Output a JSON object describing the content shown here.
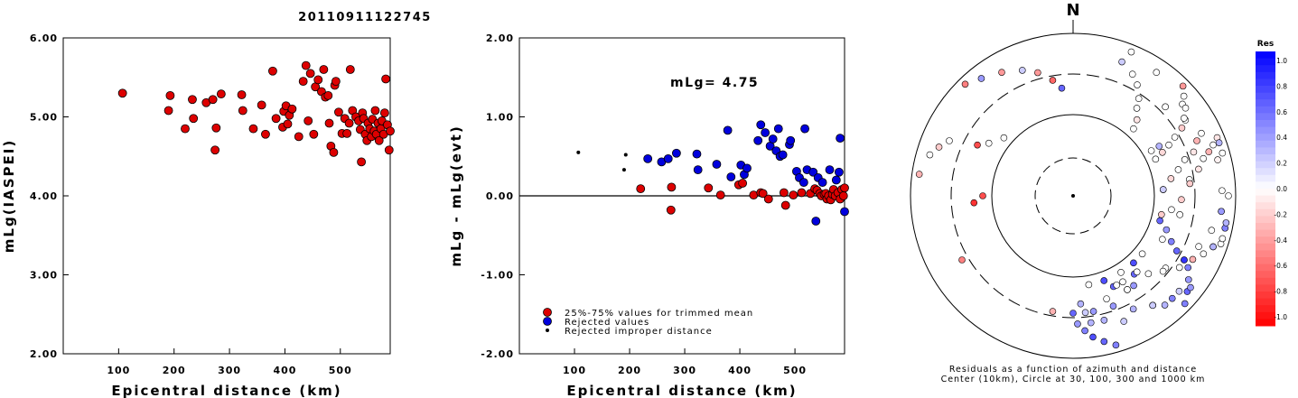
{
  "title": "20110911122745",
  "chart_data": [
    {
      "type": "scatter",
      "name": "magnitude-vs-distance",
      "xlabel": "Epicentral distance (km)",
      "ylabel": "mLg(IASPEI)",
      "xlim": [
        0,
        590
      ],
      "ylim": [
        2.0,
        6.0
      ],
      "xticks": [
        100,
        200,
        300,
        400,
        500
      ],
      "yticks": [
        "2.00",
        "3.00",
        "4.00",
        "5.00",
        "6.00"
      ],
      "marker_color": "#dd0000",
      "points": [
        [
          107,
          5.3
        ],
        [
          190,
          5.08
        ],
        [
          193,
          5.27
        ],
        [
          220,
          4.85
        ],
        [
          233,
          5.22
        ],
        [
          235,
          4.98
        ],
        [
          258,
          5.18
        ],
        [
          270,
          5.22
        ],
        [
          274,
          4.58
        ],
        [
          276,
          4.86
        ],
        [
          285,
          5.29
        ],
        [
          322,
          5.28
        ],
        [
          324,
          5.08
        ],
        [
          343,
          4.85
        ],
        [
          358,
          5.15
        ],
        [
          365,
          4.78
        ],
        [
          378,
          5.58
        ],
        [
          384,
          4.98
        ],
        [
          396,
          4.87
        ],
        [
          398,
          5.07
        ],
        [
          402,
          5.14
        ],
        [
          405,
          4.91
        ],
        [
          408,
          5.02
        ],
        [
          413,
          5.1
        ],
        [
          425,
          4.75
        ],
        [
          433,
          5.45
        ],
        [
          438,
          5.65
        ],
        [
          442,
          4.95
        ],
        [
          446,
          5.55
        ],
        [
          452,
          4.78
        ],
        [
          455,
          5.38
        ],
        [
          460,
          5.47
        ],
        [
          466,
          5.32
        ],
        [
          470,
          5.6
        ],
        [
          473,
          5.25
        ],
        [
          478,
          5.27
        ],
        [
          480,
          4.92
        ],
        [
          483,
          4.63
        ],
        [
          488,
          4.55
        ],
        [
          490,
          5.4
        ],
        [
          492,
          5.45
        ],
        [
          497,
          5.06
        ],
        [
          503,
          4.79
        ],
        [
          508,
          4.98
        ],
        [
          512,
          4.79
        ],
        [
          516,
          4.92
        ],
        [
          518,
          5.6
        ],
        [
          522,
          5.08
        ],
        [
          528,
          5.0
        ],
        [
          533,
          4.95
        ],
        [
          536,
          4.84
        ],
        [
          538,
          4.43
        ],
        [
          540,
          5.05
        ],
        [
          542,
          4.98
        ],
        [
          545,
          4.78
        ],
        [
          548,
          4.7
        ],
        [
          550,
          4.92
        ],
        [
          553,
          4.85
        ],
        [
          556,
          4.75
        ],
        [
          558,
          4.97
        ],
        [
          561,
          4.82
        ],
        [
          563,
          5.08
        ],
        [
          565,
          4.78
        ],
        [
          568,
          4.92
        ],
        [
          570,
          4.7
        ],
        [
          573,
          4.85
        ],
        [
          575,
          4.95
        ],
        [
          578,
          4.78
        ],
        [
          580,
          5.05
        ],
        [
          582,
          5.48
        ],
        [
          585,
          4.9
        ],
        [
          588,
          4.58
        ],
        [
          590,
          4.82
        ]
      ]
    },
    {
      "type": "scatter",
      "name": "residual-vs-distance",
      "xlabel": "Epicentral distance (km)",
      "ylabel": "mLg - mLg(evt)",
      "xlim": [
        0,
        590
      ],
      "ylim": [
        -2.0,
        2.0
      ],
      "xticks": [
        100,
        200,
        300,
        400,
        500
      ],
      "yticks": [
        "-2.00",
        "-1.00",
        "0.00",
        "1.00",
        "2.00"
      ],
      "annotation": "mLg= 4.75",
      "series": [
        {
          "name": "25%-75% values for trimmed mean",
          "color": "#dd0000",
          "points": [
            [
              220,
              0.09
            ],
            [
              275,
              -0.18
            ],
            [
              276,
              0.11
            ],
            [
              343,
              0.1
            ],
            [
              365,
              0.01
            ],
            [
              398,
              0.14
            ],
            [
              405,
              0.16
            ],
            [
              425,
              0.01
            ],
            [
              438,
              0.04
            ],
            [
              442,
              0.03
            ],
            [
              452,
              -0.04
            ],
            [
              480,
              0.04
            ],
            [
              483,
              -0.12
            ],
            [
              497,
              0.01
            ],
            [
              512,
              0.04
            ],
            [
              528,
              0.03
            ],
            [
              536,
              0.09
            ],
            [
              540,
              0.07
            ],
            [
              545,
              0.03
            ],
            [
              548,
              0.0
            ],
            [
              553,
              0.02
            ],
            [
              556,
              0.03
            ],
            [
              558,
              -0.04
            ],
            [
              561,
              0.0
            ],
            [
              565,
              -0.05
            ],
            [
              568,
              0.02
            ],
            [
              570,
              0.08
            ],
            [
              573,
              0.0
            ],
            [
              578,
              0.04
            ],
            [
              582,
              -0.04
            ],
            [
              585,
              0.08
            ],
            [
              588,
              0.0
            ],
            [
              590,
              0.1
            ]
          ]
        },
        {
          "name": "Rejected values",
          "color": "#0000dd",
          "points": [
            [
              233,
              0.47
            ],
            [
              258,
              0.43
            ],
            [
              270,
              0.47
            ],
            [
              285,
              0.54
            ],
            [
              322,
              0.53
            ],
            [
              324,
              0.33
            ],
            [
              358,
              0.4
            ],
            [
              378,
              0.83
            ],
            [
              384,
              0.24
            ],
            [
              402,
              0.39
            ],
            [
              408,
              0.27
            ],
            [
              413,
              0.35
            ],
            [
              433,
              0.7
            ],
            [
              438,
              0.9
            ],
            [
              446,
              0.8
            ],
            [
              455,
              0.63
            ],
            [
              460,
              0.72
            ],
            [
              466,
              0.57
            ],
            [
              470,
              0.85
            ],
            [
              473,
              0.5
            ],
            [
              478,
              0.52
            ],
            [
              490,
              0.65
            ],
            [
              492,
              0.7
            ],
            [
              503,
              0.31
            ],
            [
              508,
              0.23
            ],
            [
              516,
              0.17
            ],
            [
              518,
              0.85
            ],
            [
              522,
              0.33
            ],
            [
              533,
              0.3
            ],
            [
              538,
              -0.32
            ],
            [
              542,
              0.23
            ],
            [
              550,
              0.17
            ],
            [
              563,
              0.33
            ],
            [
              575,
              0.2
            ],
            [
              580,
              0.3
            ],
            [
              582,
              0.73
            ],
            [
              590,
              -0.2
            ]
          ]
        },
        {
          "name": "Rejected improper distance",
          "color": "#000000",
          "points": [
            [
              107,
              0.55
            ],
            [
              193,
              0.52
            ],
            [
              190,
              0.33
            ]
          ]
        }
      ]
    },
    {
      "type": "polar",
      "name": "residual-azimuth-map",
      "top_label": "N",
      "caption_line1": "Residuals as a function of azimuth and distance",
      "caption_line2": "Center (10km), Circle at 30, 100, 300 and 1000 km",
      "colorbar_title": "Res",
      "colorbar_ticks": [
        "1.0",
        "0.8",
        "0.6",
        "0.4",
        "0.2",
        "0.0",
        "-0.2",
        "-0.4",
        "-0.6",
        "-0.8",
        "-1.0"
      ],
      "stations": [
        [
          108,
          0.0
        ],
        [
          76,
          -0.05
        ],
        [
          64,
          0.0
        ],
        [
          66,
          -0.3
        ],
        [
          70,
          -0.1
        ],
        [
          72,
          0.0
        ],
        [
          76,
          0.0
        ],
        [
          80,
          -0.15
        ],
        [
          86,
          -0.1
        ],
        [
          90,
          0.0
        ],
        [
          96,
          -0.05
        ],
        [
          104,
          0.0
        ],
        [
          112,
          0.0
        ],
        [
          120,
          -0.3
        ],
        [
          128,
          0.0
        ],
        [
          136,
          0.0
        ],
        [
          150,
          0.0
        ],
        [
          170,
          0.0
        ],
        [
          22,
          0.0
        ],
        [
          34,
          0.0
        ],
        [
          50,
          0.0
        ],
        [
          56,
          0.0
        ],
        [
          46,
          0.0
        ],
        [
          82,
          0.0
        ],
        [
          100,
          0.0
        ],
        [
          116,
          0.0
        ],
        [
          60,
          0.0
        ],
        [
          74,
          0.0
        ],
        [
          88,
          0.0
        ],
        [
          20,
          0.2
        ],
        [
          26,
          0.0
        ],
        [
          30,
          0.0
        ],
        [
          34,
          0.0
        ],
        [
          36,
          0.0
        ],
        [
          40,
          -0.1
        ],
        [
          42,
          0.0
        ],
        [
          45,
          -0.4
        ],
        [
          48,
          0.0
        ],
        [
          52,
          0.0
        ],
        [
          55,
          0.0
        ],
        [
          58,
          -0.2
        ],
        [
          60,
          0.0
        ],
        [
          62,
          0.0
        ],
        [
          64,
          -0.15
        ],
        [
          66,
          0.0
        ],
        [
          68,
          -0.1
        ],
        [
          70,
          0.0
        ],
        [
          72,
          -0.3
        ],
        [
          74,
          0.0
        ],
        [
          78,
          -0.1
        ],
        [
          84,
          -0.2
        ],
        [
          92,
          -0.2
        ],
        [
          98,
          0.0
        ],
        [
          102,
          -0.2
        ],
        [
          106,
          0.0
        ],
        [
          110,
          -0.2
        ],
        [
          114,
          0.0
        ],
        [
          118,
          -0.3
        ],
        [
          124,
          0.0
        ],
        [
          130,
          0.0
        ],
        [
          298,
          -0.7
        ],
        [
          302,
          0.0
        ],
        [
          310,
          0.0
        ],
        [
          316,
          -0.5
        ],
        [
          322,
          0.4
        ],
        [
          330,
          -0.4
        ],
        [
          338,
          0.2
        ],
        [
          344,
          -0.4
        ],
        [
          350,
          -0.6
        ],
        [
          354,
          0.6
        ],
        [
          266,
          -0.8
        ],
        [
          270,
          -0.7
        ],
        [
          278,
          -0.3
        ],
        [
          286,
          0.0
        ],
        [
          290,
          -0.2
        ],
        [
          294,
          0.0
        ],
        [
          240,
          -0.5
        ],
        [
          190,
          -0.3
        ],
        [
          150,
          0.5
        ],
        [
          156,
          0.6
        ],
        [
          160,
          0.7
        ],
        [
          164,
          0.5
        ],
        [
          168,
          0.6
        ],
        [
          172,
          0.7
        ],
        [
          175,
          0.5
        ],
        [
          178,
          0.4
        ],
        [
          180,
          0.6
        ],
        [
          146,
          0.4
        ],
        [
          142,
          0.6
        ],
        [
          138,
          0.7
        ],
        [
          134,
          0.5
        ],
        [
          130,
          0.6
        ],
        [
          126,
          0.4
        ],
        [
          122,
          0.5
        ],
        [
          120,
          0.8
        ],
        [
          118,
          0.6
        ],
        [
          115,
          0.5
        ],
        [
          110,
          0.4
        ],
        [
          106,
          0.6
        ],
        [
          102,
          0.5
        ],
        [
          96,
          0.4
        ],
        [
          140,
          0.3
        ],
        [
          158,
          0.2
        ],
        [
          166,
          0.3
        ],
        [
          174,
          0.2
        ],
        [
          162,
          0.0
        ],
        [
          154,
          0.0
        ],
        [
          148,
          0.0
        ],
        [
          70,
          0.3
        ],
        [
          110,
          0.3
        ],
        [
          132,
          0.2
        ],
        [
          144,
          0.3
        ],
        [
          152,
          0.3
        ],
        [
          170,
          0.4
        ],
        [
          176,
          0.3
        ],
        [
          60,
          0.3
        ],
        [
          86,
          0.2
        ],
        [
          100,
          0.3
        ],
        [
          128,
          0.4
        ],
        [
          136,
          0.5
        ],
        [
          144,
          0.2
        ],
        [
          172,
          0.3
        ],
        [
          160,
          0.4
        ],
        [
          150,
          0.0
        ],
        [
          140,
          0.0
        ],
        [
          130,
          0.0
        ]
      ]
    }
  ]
}
